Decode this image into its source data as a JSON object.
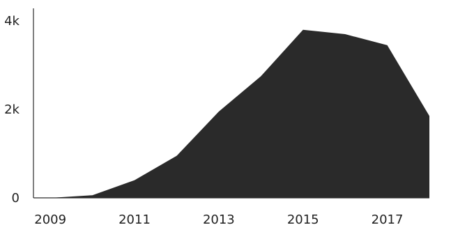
{
  "chart_data": {
    "type": "area",
    "title": "",
    "xlabel": "",
    "ylabel": "",
    "x": [
      2009,
      2010,
      2011,
      2012,
      2013,
      2014,
      2015,
      2016,
      2017,
      2018
    ],
    "series": [
      {
        "values": [
          0,
          60,
          400,
          950,
          1950,
          2750,
          3800,
          3700,
          3450,
          1850
        ]
      }
    ],
    "xlim": [
      2008.6,
      2018
    ],
    "ylim": [
      0,
      4000
    ],
    "x_ticks": [
      {
        "value": 2009,
        "label": "2009"
      },
      {
        "value": 2011,
        "label": "2011"
      },
      {
        "value": 2013,
        "label": "2013"
      },
      {
        "value": 2015,
        "label": "2015"
      },
      {
        "value": 2017,
        "label": "2017"
      }
    ],
    "y_ticks": [
      {
        "value": 0,
        "label": "0"
      },
      {
        "value": 2000,
        "label": "2k"
      },
      {
        "value": 4000,
        "label": "4k"
      }
    ],
    "grid": false,
    "legend": "none",
    "colors": {
      "fill": "#2a2a2a",
      "axis": "#2b2b2b",
      "text": "#1f1f1f"
    }
  }
}
